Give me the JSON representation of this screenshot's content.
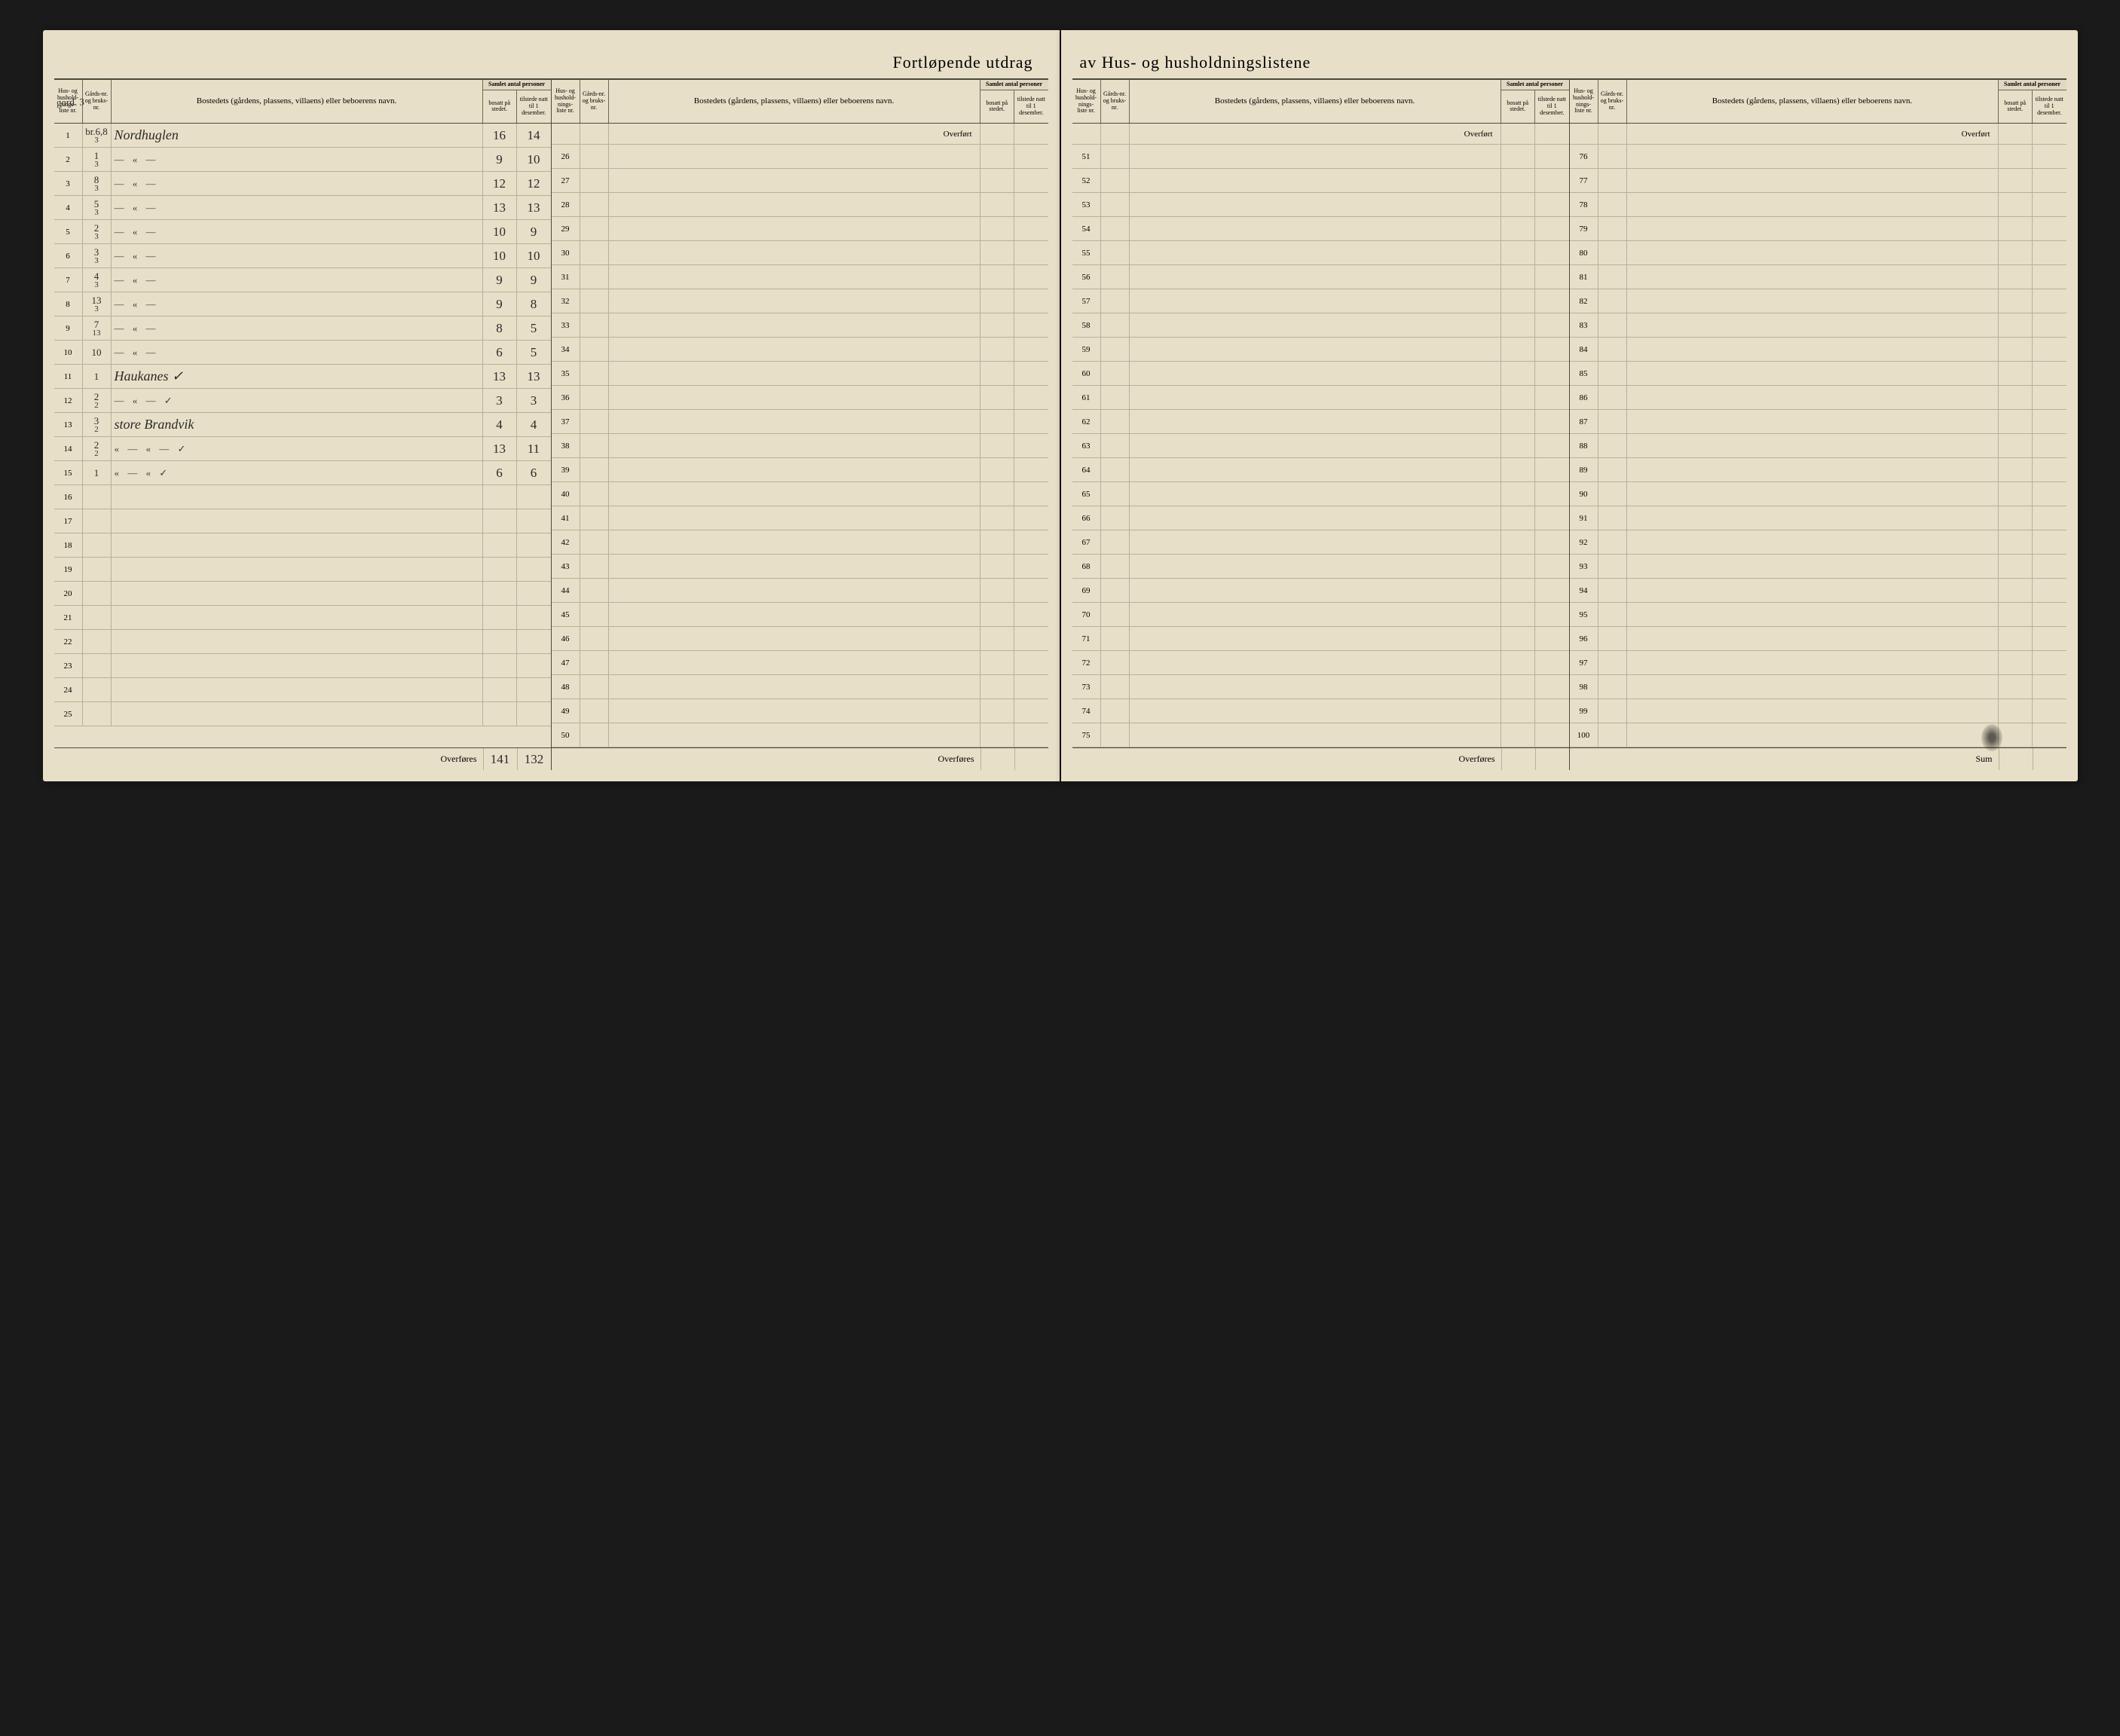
{
  "title_left": "Fortløpende utdrag",
  "title_right": "av Hus- og husholdningslistene",
  "headers": {
    "liste": "Hus- og hushold-nings-liste nr.",
    "gards": "Gårds-nr. og bruks-nr.",
    "bosted": "Bostedets (gårdens, plassens, villaens) eller beboerens navn.",
    "samlet": "Samlet antal personer",
    "bosatt": "bosatt på stedet.",
    "tilstede": "tilstede natt til 1 desember."
  },
  "overfort": "Overført",
  "overfores": "Overføres",
  "sum": "Sum",
  "corner_note": "gord. 3",
  "left_col1": [
    {
      "n": "1",
      "g1": "br.6,8",
      "g2": "3",
      "name": "Nordhuglen",
      "b": "16",
      "t": "14"
    },
    {
      "n": "2",
      "g1": "1",
      "g2": "3",
      "name": "— « —",
      "b": "9",
      "t": "10"
    },
    {
      "n": "3",
      "g1": "8",
      "g2": "3",
      "name": "— « —",
      "b": "12",
      "t": "12"
    },
    {
      "n": "4",
      "g1": "5",
      "g2": "3",
      "name": "— « —",
      "b": "13",
      "t": "13"
    },
    {
      "n": "5",
      "g1": "2",
      "g2": "3",
      "name": "— « —",
      "b": "10",
      "t": "9"
    },
    {
      "n": "6",
      "g1": "3",
      "g2": "3",
      "name": "— « —",
      "b": "10",
      "t": "10"
    },
    {
      "n": "7",
      "g1": "4",
      "g2": "3",
      "name": "— « —",
      "b": "9",
      "t": "9"
    },
    {
      "n": "8",
      "g1": "13",
      "g2": "3",
      "name": "— « —",
      "b": "9",
      "t": "8"
    },
    {
      "n": "9",
      "g1": "7",
      "g2": "13",
      "name": "— « —",
      "b": "8",
      "t": "5"
    },
    {
      "n": "10",
      "g1": "10",
      "g2": "",
      "name": "— « —",
      "b": "6",
      "t": "5"
    },
    {
      "n": "11",
      "g1": "1",
      "g2": "",
      "name": "Haukanes ✓",
      "b": "13",
      "t": "13"
    },
    {
      "n": "12",
      "g1": "2",
      "g2": "2",
      "name": "— « — ✓",
      "b": "3",
      "t": "3"
    },
    {
      "n": "13",
      "g1": "3",
      "g2": "2",
      "name": "store Brandvik",
      "b": "4",
      "t": "4"
    },
    {
      "n": "14",
      "g1": "2",
      "g2": "2",
      "name": "«   — « — ✓",
      "b": "13",
      "t": "11"
    },
    {
      "n": "15",
      "g1": "1",
      "g2": "",
      "name": "«   — « ✓",
      "b": "6",
      "t": "6"
    },
    {
      "n": "16"
    },
    {
      "n": "17"
    },
    {
      "n": "18"
    },
    {
      "n": "19"
    },
    {
      "n": "20"
    },
    {
      "n": "21"
    },
    {
      "n": "22"
    },
    {
      "n": "23"
    },
    {
      "n": "24"
    },
    {
      "n": "25"
    }
  ],
  "left_col1_total_b": "141",
  "left_col1_total_t": "132",
  "left_col2_start": 26,
  "right_col1_start": 51,
  "right_col2_start": 76,
  "colors": {
    "paper": "#e8dfc8",
    "ink": "#2a2a2a",
    "rule_dark": "#4a4a3a",
    "rule_light": "#b8b09a",
    "background": "#1a1a1a"
  }
}
